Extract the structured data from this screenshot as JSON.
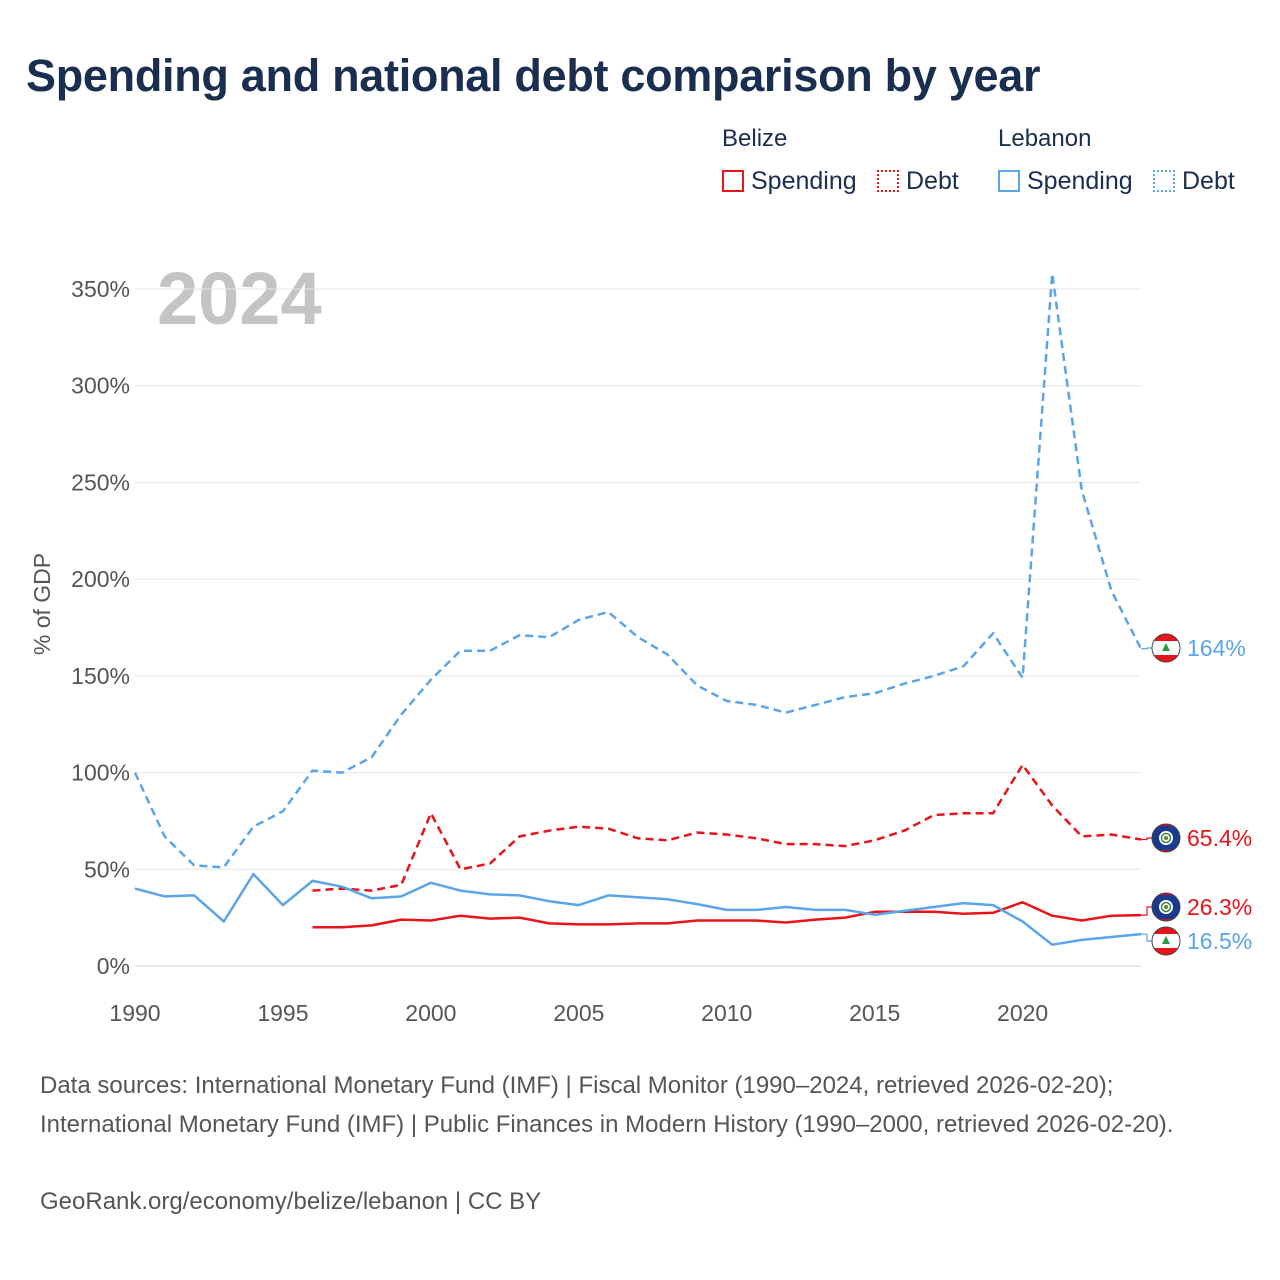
{
  "title": "Spending and national debt comparison by year",
  "legend": {
    "groups": [
      {
        "country": "Belize",
        "items": [
          {
            "label": "Spending",
            "style": "solid",
            "color": "#e8131b"
          },
          {
            "label": "Debt",
            "style": "dotted",
            "color": "#e8131b"
          }
        ]
      },
      {
        "country": "Lebanon",
        "items": [
          {
            "label": "Spending",
            "style": "solid",
            "color": "#5aa5e8"
          },
          {
            "label": "Debt",
            "style": "dotted",
            "color": "#5aa5e8"
          }
        ]
      }
    ]
  },
  "chart_data": {
    "type": "line",
    "title": "Spending and national debt comparison by year",
    "year_watermark": "2024",
    "ylabel": "% of GDP",
    "xlabel": "",
    "xlim": [
      1990,
      2024
    ],
    "ylim": [
      0,
      350
    ],
    "y_ticks": [
      0,
      50,
      100,
      150,
      200,
      250,
      300,
      350
    ],
    "y_tick_labels": [
      "0%",
      "50%",
      "100%",
      "150%",
      "200%",
      "250%",
      "300%",
      "350%"
    ],
    "x_ticks": [
      1990,
      1995,
      2000,
      2005,
      2010,
      2015,
      2020
    ],
    "x_tick_labels": [
      "1990",
      "1995",
      "2000",
      "2005",
      "2010",
      "2015",
      "2020"
    ],
    "grid": "horizontal",
    "series": [
      {
        "name": "Lebanon Debt",
        "country": "Lebanon",
        "measure": "Debt",
        "color": "#5aa5e8",
        "dashed": true,
        "x": [
          1990,
          1991,
          1992,
          1993,
          1994,
          1995,
          1996,
          1997,
          1998,
          1999,
          2000,
          2001,
          2002,
          2003,
          2004,
          2005,
          2006,
          2007,
          2008,
          2009,
          2010,
          2011,
          2012,
          2013,
          2014,
          2015,
          2016,
          2017,
          2018,
          2019,
          2020,
          2021,
          2022,
          2023,
          2024
        ],
        "values": [
          100,
          67,
          52,
          51,
          72,
          80,
          101,
          100,
          108,
          130,
          148,
          163,
          163,
          171,
          170,
          179,
          183,
          170,
          161,
          145,
          137,
          135,
          131,
          135,
          139,
          141,
          146,
          150,
          155,
          172,
          149,
          358,
          246,
          194,
          164
        ],
        "end_label": "164%",
        "flag": "lebanon"
      },
      {
        "name": "Belize Debt",
        "country": "Belize",
        "measure": "Debt",
        "color": "#e8131b",
        "dashed": true,
        "x": [
          1996,
          1997,
          1998,
          1999,
          2000,
          2001,
          2002,
          2003,
          2004,
          2005,
          2006,
          2007,
          2008,
          2009,
          2010,
          2011,
          2012,
          2013,
          2014,
          2015,
          2016,
          2017,
          2018,
          2019,
          2020,
          2021,
          2022,
          2023,
          2024
        ],
        "values": [
          39,
          40,
          39,
          42,
          79,
          50,
          53,
          67,
          70,
          72,
          71,
          66,
          65,
          69,
          68,
          66,
          63,
          63,
          62,
          65,
          70,
          78,
          79,
          79,
          104,
          83,
          67,
          68,
          65.4
        ],
        "end_label": "65.4%",
        "flag": "belize"
      },
      {
        "name": "Belize Spending",
        "country": "Belize",
        "measure": "Spending",
        "color": "#e8131b",
        "dashed": false,
        "x": [
          1996,
          1997,
          1998,
          1999,
          2000,
          2001,
          2002,
          2003,
          2004,
          2005,
          2006,
          2007,
          2008,
          2009,
          2010,
          2011,
          2012,
          2013,
          2014,
          2015,
          2016,
          2017,
          2018,
          2019,
          2020,
          2021,
          2022,
          2023,
          2024
        ],
        "values": [
          20,
          20,
          21,
          24,
          23.5,
          26,
          24.5,
          25,
          22,
          21.5,
          21.5,
          22,
          22,
          23.5,
          23.5,
          23.5,
          22.5,
          24,
          25,
          28,
          28,
          28,
          27,
          27.5,
          33,
          26,
          23.5,
          26,
          26.3
        ],
        "end_label": "26.3%",
        "flag": "belize"
      },
      {
        "name": "Lebanon Spending",
        "country": "Lebanon",
        "measure": "Spending",
        "color": "#5aa5e8",
        "dashed": false,
        "x": [
          1990,
          1991,
          1992,
          1993,
          1994,
          1995,
          1996,
          1997,
          1998,
          1999,
          2000,
          2001,
          2002,
          2003,
          2004,
          2005,
          2006,
          2007,
          2008,
          2009,
          2010,
          2011,
          2012,
          2013,
          2014,
          2015,
          2016,
          2017,
          2018,
          2019,
          2020,
          2021,
          2022,
          2023,
          2024
        ],
        "values": [
          40,
          36,
          36.5,
          23,
          47.5,
          31.5,
          44,
          41,
          35,
          36,
          43,
          39,
          37,
          36.5,
          33.5,
          31.5,
          36.5,
          35.5,
          34.5,
          32,
          29,
          29,
          30.5,
          29,
          29,
          26.5,
          28.5,
          30.5,
          32.5,
          31.5,
          23,
          11,
          13.5,
          15,
          16.5
        ],
        "end_label": "16.5%",
        "flag": "lebanon"
      }
    ]
  },
  "sources": "Data sources: International Monetary Fund (IMF) | Fiscal Monitor (1990–2024, retrieved 2026-02-20); International Monetary Fund (IMF) | Public Finances in Modern History (1990–2000, retrieved 2026-02-20).",
  "attribution": "GeoRank.org/economy/belize/lebanon | CC BY"
}
